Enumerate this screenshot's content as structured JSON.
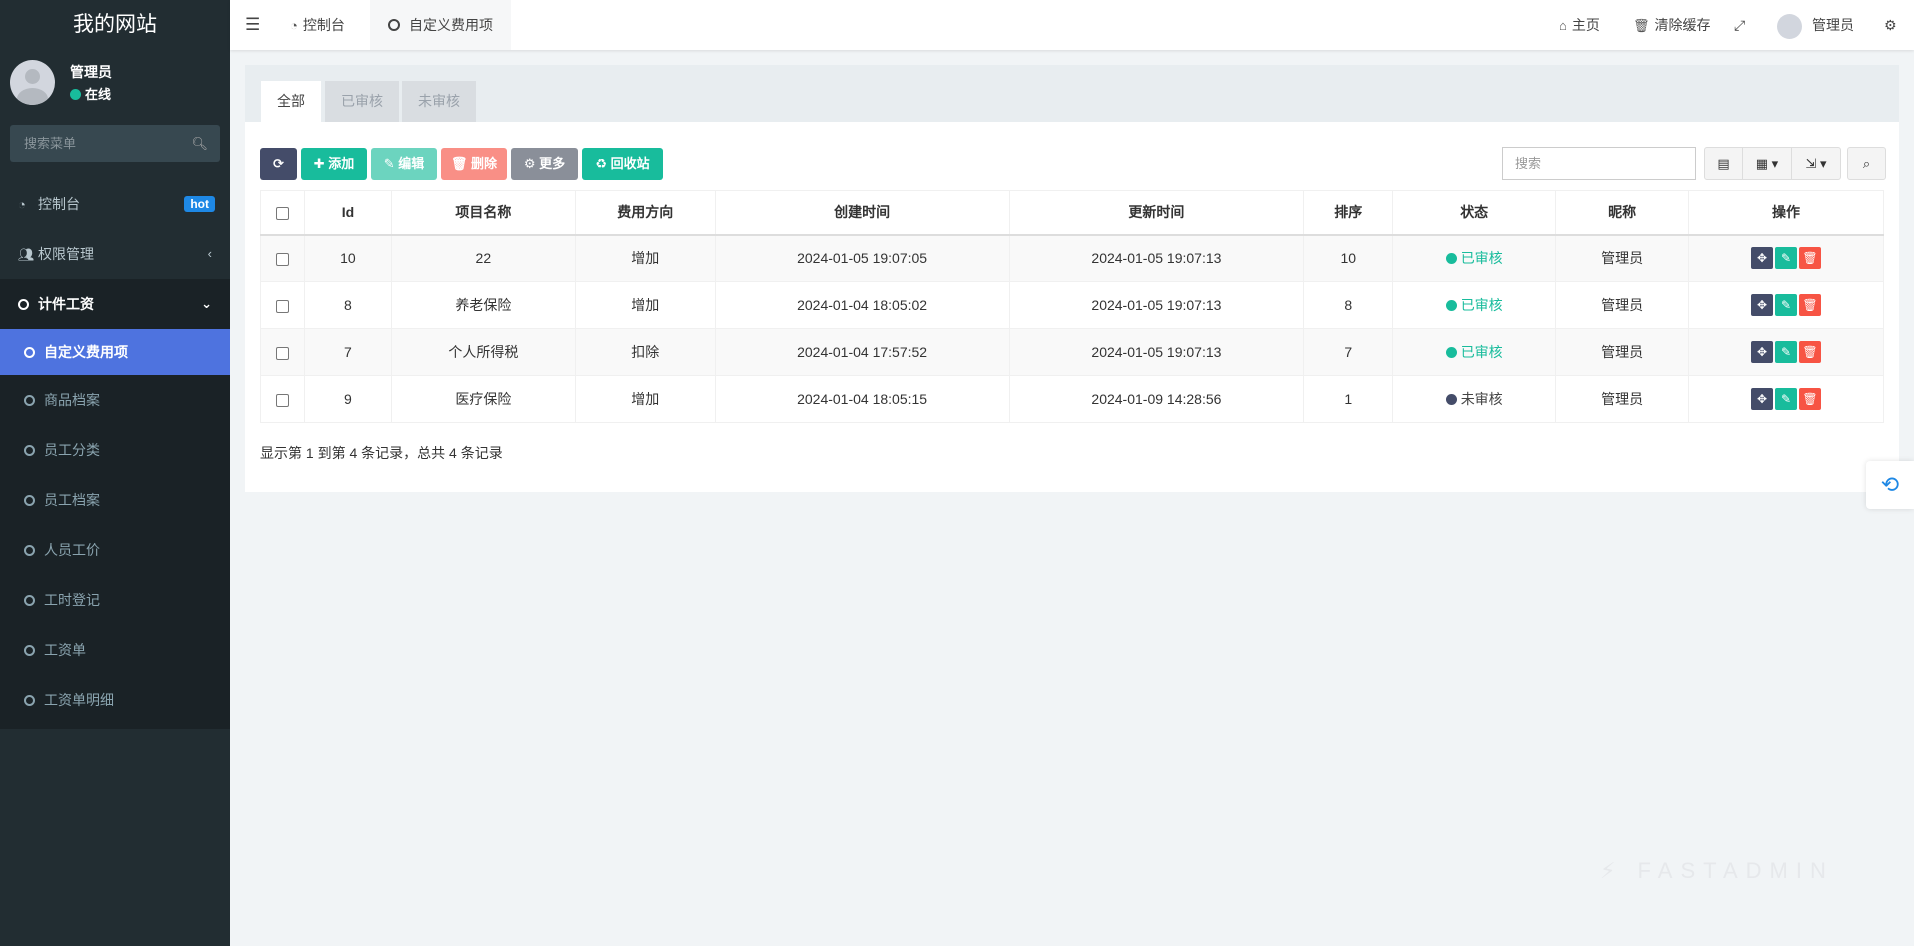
{
  "sidebar": {
    "site_name": "我的网站",
    "user": {
      "name": "管理员",
      "status": "在线"
    },
    "search_placeholder": "搜索菜单",
    "items": [
      {
        "label": "控制台",
        "badge": "hot"
      },
      {
        "label": "权限管理"
      },
      {
        "label": "计件工资"
      }
    ],
    "sub_items": [
      {
        "label": "自定义费用项"
      },
      {
        "label": "商品档案"
      },
      {
        "label": "员工分类"
      },
      {
        "label": "员工档案"
      },
      {
        "label": "人员工价"
      },
      {
        "label": "工时登记"
      },
      {
        "label": "工资单"
      },
      {
        "label": "工资单明细"
      }
    ]
  },
  "header": {
    "tabs": [
      {
        "label": "控制台"
      },
      {
        "label": "自定义费用项"
      }
    ],
    "home": "主页",
    "clear_cache": "清除缓存",
    "user": "管理员"
  },
  "panel": {
    "tabs": [
      "全部",
      "已审核",
      "未审核"
    ],
    "toolbar": {
      "add": "添加",
      "edit": "编辑",
      "delete": "删除",
      "more": "更多",
      "recycle": "回收站",
      "search_placeholder": "搜索"
    },
    "columns": [
      "Id",
      "项目名称",
      "费用方向",
      "创建时间",
      "更新时间",
      "排序",
      "状态",
      "昵称",
      "操作"
    ],
    "rows": [
      {
        "id": "10",
        "name": "22",
        "direction": "增加",
        "created": "2024-01-05 19:07:05",
        "updated": "2024-01-05 19:07:13",
        "sort": "10",
        "status": "已审核",
        "nickname": "管理员"
      },
      {
        "id": "8",
        "name": "养老保险",
        "direction": "增加",
        "created": "2024-01-04 18:05:02",
        "updated": "2024-01-05 19:07:13",
        "sort": "8",
        "status": "已审核",
        "nickname": "管理员"
      },
      {
        "id": "7",
        "name": "个人所得税",
        "direction": "扣除",
        "created": "2024-01-04 17:57:52",
        "updated": "2024-01-05 19:07:13",
        "sort": "7",
        "status": "已审核",
        "nickname": "管理员"
      },
      {
        "id": "9",
        "name": "医疗保险",
        "direction": "增加",
        "created": "2024-01-04 18:05:15",
        "updated": "2024-01-09 14:28:56",
        "sort": "1",
        "status": "未审核",
        "nickname": "管理员"
      }
    ],
    "footer": "显示第 1 到第 4 条记录，总共 4 条记录"
  },
  "colors": {
    "approved": "#18bc9c",
    "pending": "#444c69",
    "active_menu": "#4e73df",
    "danger": "#f75444"
  },
  "watermark": "FASTADMIN"
}
